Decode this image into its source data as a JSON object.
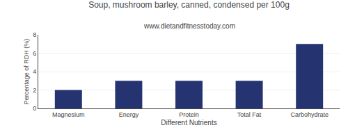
{
  "chart_data": {
    "type": "bar",
    "title": "Soup, mushroom barley, canned, condensed per 100g",
    "subtitle": "www.dietandfitnesstoday.com",
    "categories": [
      "Magnesium",
      "Energy",
      "Protein",
      "Total Fat",
      "Carbohydrate"
    ],
    "values": [
      2.0,
      3.0,
      3.0,
      3.0,
      7.0
    ],
    "color": "#253471",
    "xlabel": "Different Nutrients",
    "ylabel": "Percentage of RDH (%)",
    "ylim": [
      0,
      8
    ],
    "yticks": [
      0,
      2,
      4,
      6,
      8
    ],
    "grid": true
  }
}
